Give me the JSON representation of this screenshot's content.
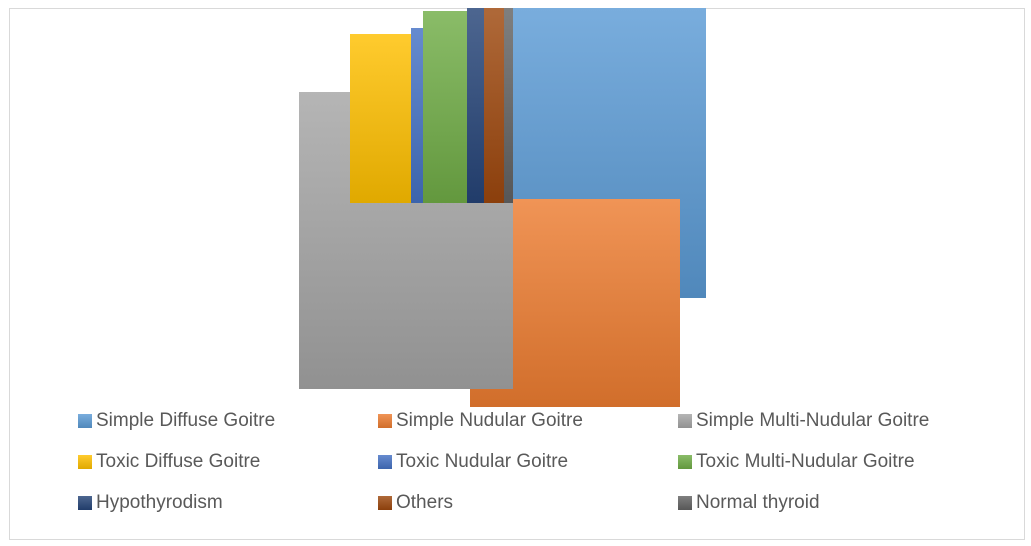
{
  "chart_data": {
    "type": "treemap",
    "title": "",
    "series": [
      {
        "name": "Simple Diffuse Goitre",
        "color": "#5b9bd5"
      },
      {
        "name": "Simple Nudular Goitre",
        "color": "#ed7d31"
      },
      {
        "name": "Simple Multi-Nudular Goitre",
        "color": "#a5a5a5"
      },
      {
        "name": "Toxic Diffuse Goitre",
        "color": "#ffc000"
      },
      {
        "name": "Toxic  Nudular Goitre",
        "color": "#4472c4"
      },
      {
        "name": "Toxic Multi-Nudular Goitre",
        "color": "#70ad47"
      },
      {
        "name": "Hypothyrodism",
        "color": "#264478"
      },
      {
        "name": "Others",
        "color": "#9e480e"
      },
      {
        "name": "Normal thyroid",
        "color": "#636363"
      }
    ],
    "legend_position": "bottom",
    "grid": false
  }
}
